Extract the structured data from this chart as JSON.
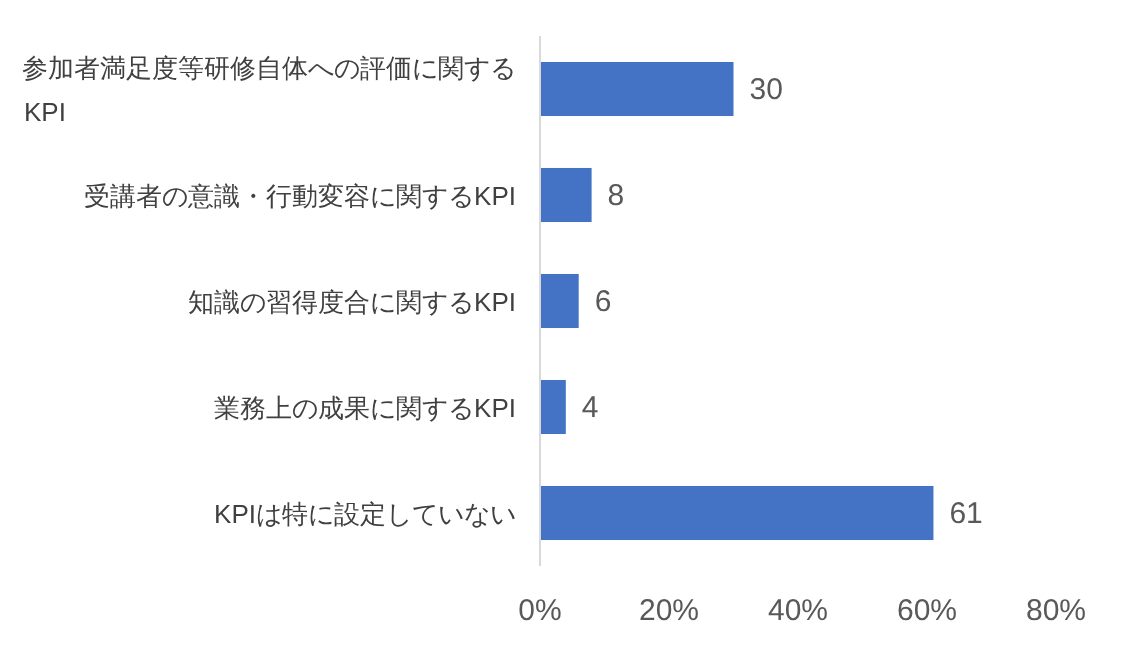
{
  "chart_data": {
    "type": "bar",
    "orientation": "horizontal",
    "categories": [
      "参加者満足度等研修自体への評価に関するKPI",
      "受講者の意識・行動変容に関するKPI",
      "知識の習得度合に関するKPI",
      "業務上の成果に関するKPI",
      "KPIは特に設定していない"
    ],
    "values": [
      30,
      8,
      6,
      4,
      61
    ],
    "color": "#4472c4",
    "data_labels": true,
    "xlim": [
      0,
      80
    ],
    "xticks": [
      {
        "value": 0,
        "label": "0%"
      },
      {
        "value": 20,
        "label": "20%"
      },
      {
        "value": 40,
        "label": "40%"
      },
      {
        "value": 60,
        "label": "60%"
      },
      {
        "value": 80,
        "label": "80%"
      }
    ]
  }
}
